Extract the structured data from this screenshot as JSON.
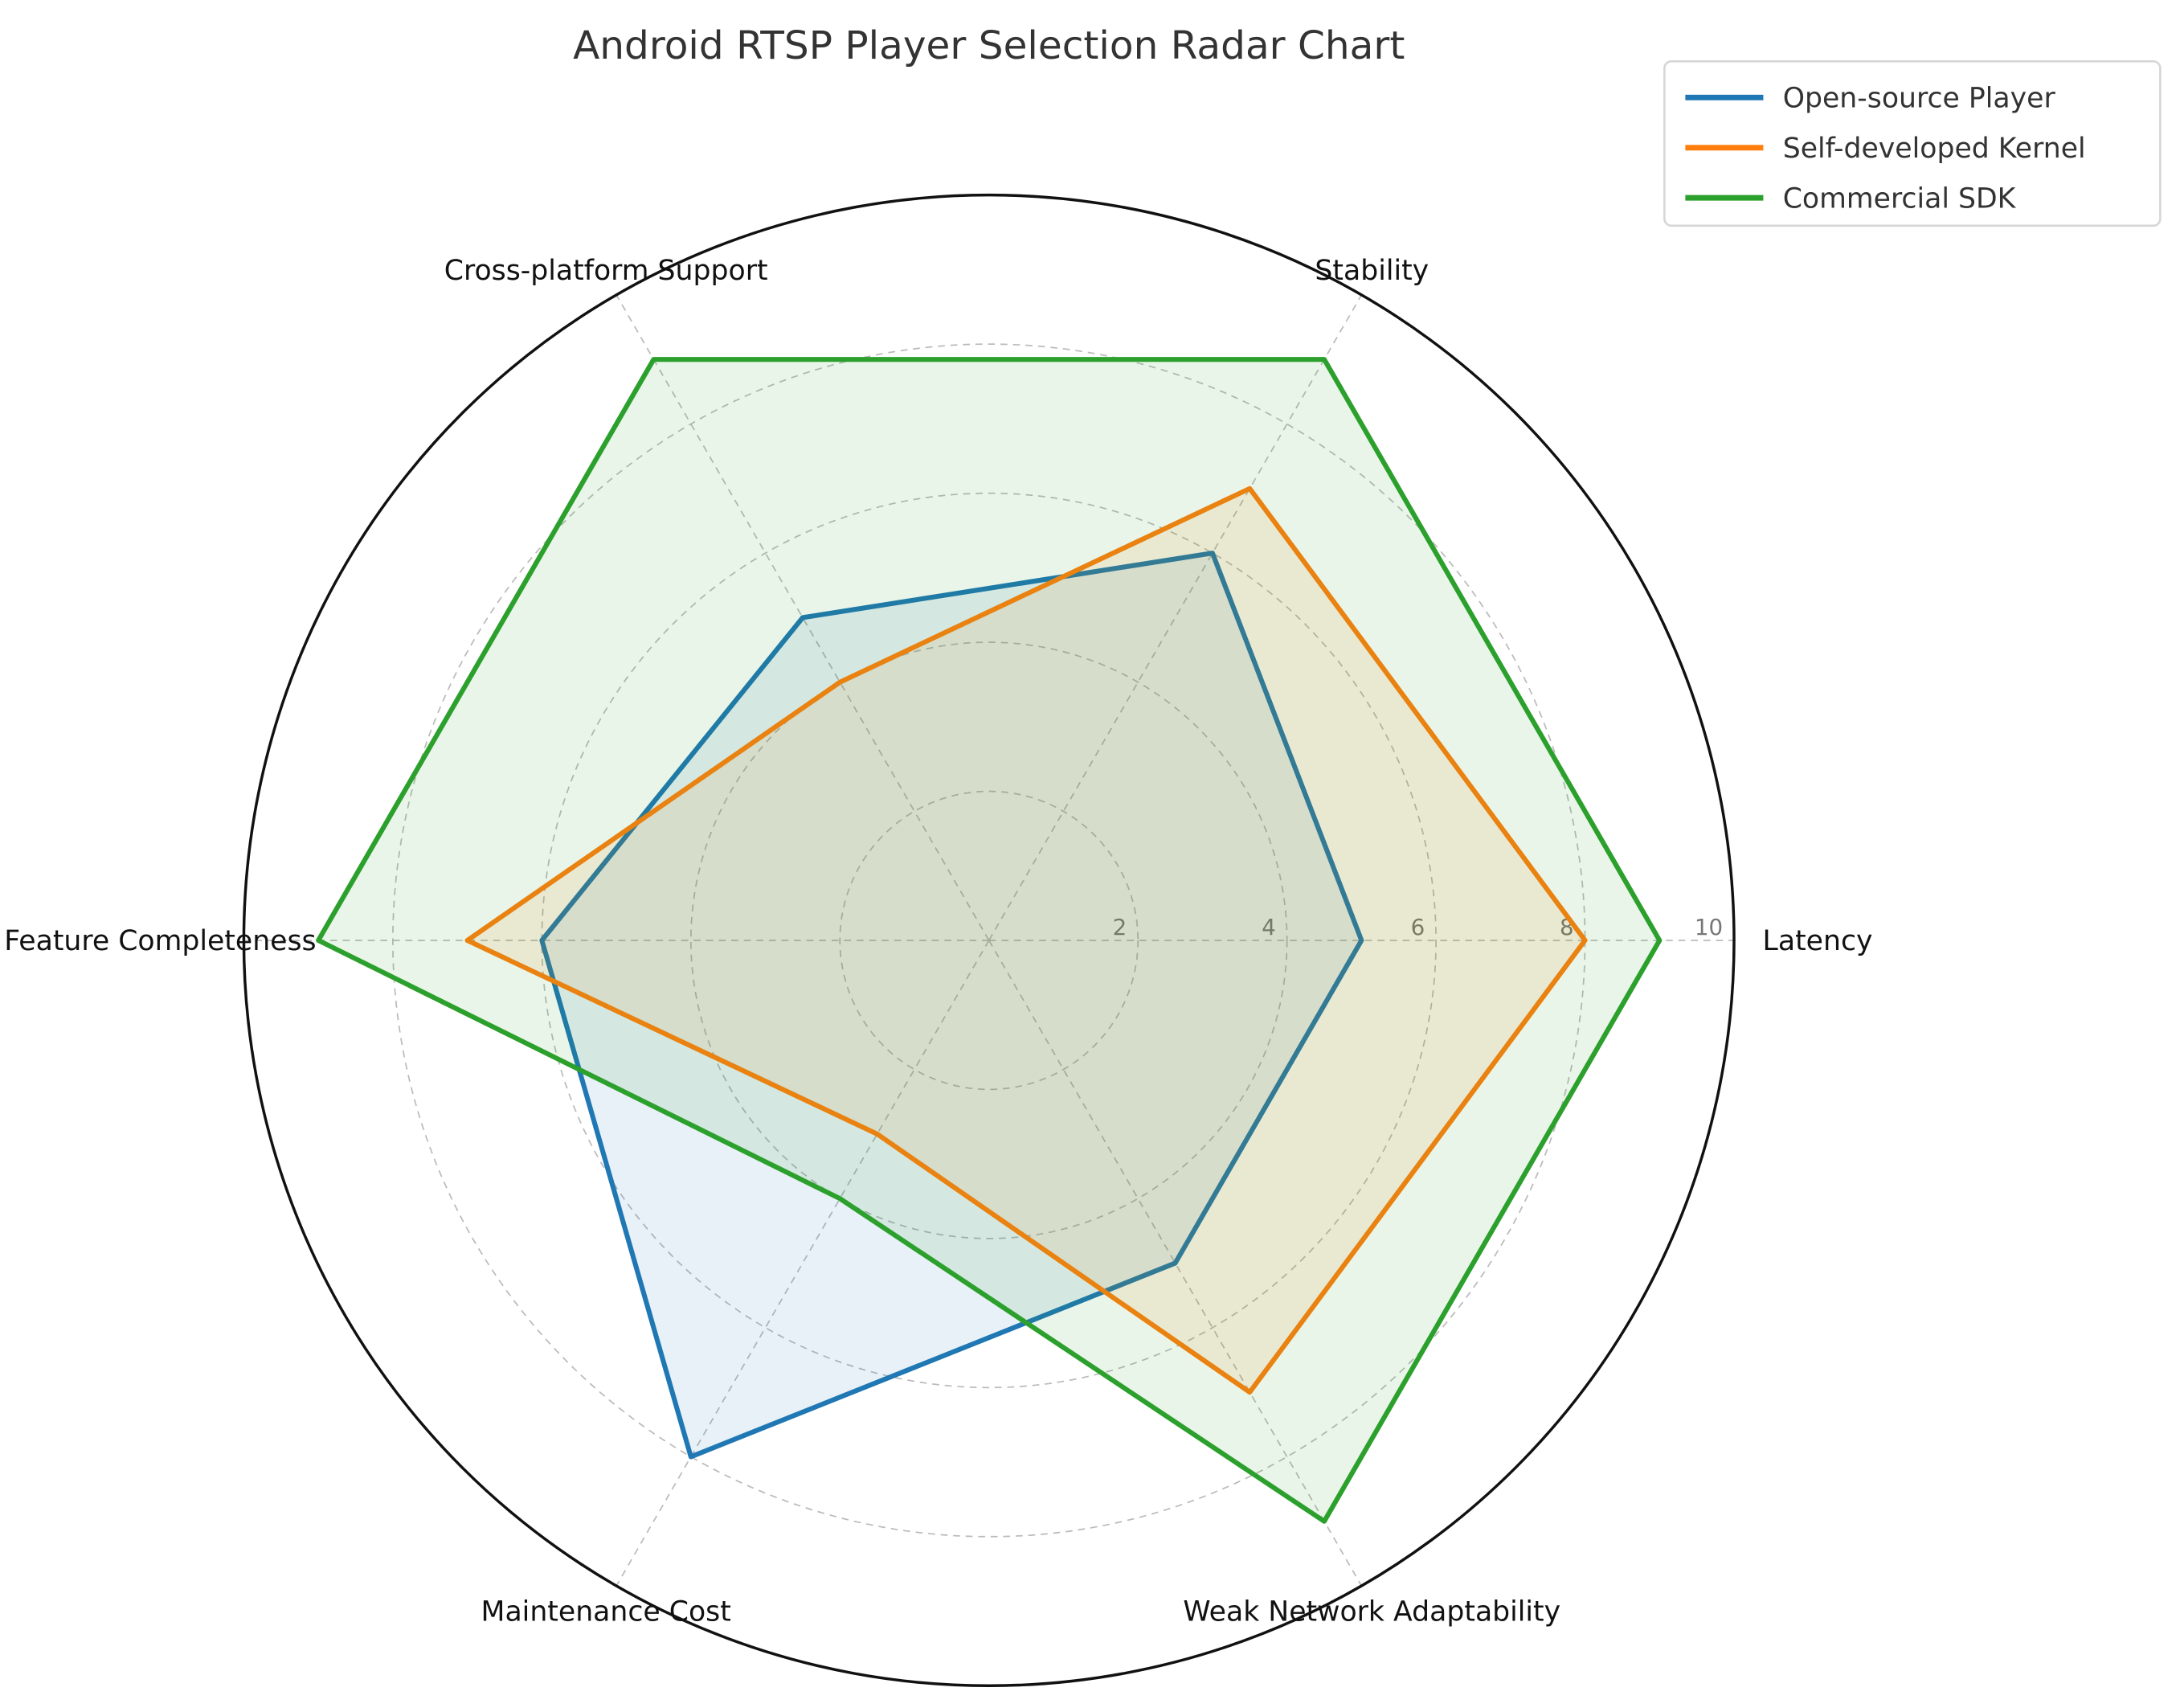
{
  "chart_data": {
    "type": "radar",
    "title": "Android RTSP Player Selection Radar Chart",
    "categories": [
      "Latency",
      "Stability",
      "Cross-platform Support",
      "Feature Completeness",
      "Maintenance Cost",
      "Weak Network Adaptability"
    ],
    "radial_ticks": [
      2,
      4,
      6,
      8,
      10
    ],
    "rlim": [
      0,
      10
    ],
    "grid": true,
    "legend_placement": "top-right",
    "series": [
      {
        "name": "Open-source Player",
        "color": "#1f77b4",
        "values": [
          5,
          6,
          5,
          6,
          8,
          5
        ]
      },
      {
        "name": "Self-developed Kernel",
        "color": "#ff7f0e",
        "values": [
          8,
          7,
          4,
          7,
          3,
          7
        ]
      },
      {
        "name": "Commercial SDK",
        "color": "#2ca02c",
        "values": [
          9,
          9,
          9,
          9,
          4,
          9
        ]
      }
    ]
  }
}
